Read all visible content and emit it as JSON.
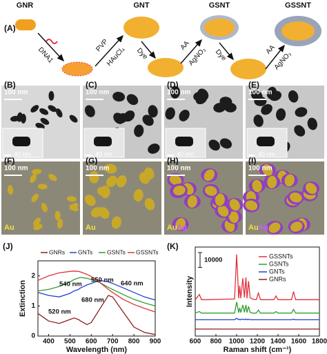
{
  "schematic": {
    "label": "(A)",
    "stages": [
      "GNR",
      "GNT",
      "GSNT",
      "GSSNT"
    ],
    "steps": [
      [
        "DNA1"
      ],
      [
        "PVP",
        "HAuCl₄"
      ],
      [
        "Dye"
      ],
      [
        "AA",
        "AgNO₃"
      ],
      [
        "Dye"
      ],
      [
        "AA",
        "AgNO₃"
      ]
    ]
  },
  "panels": [
    {
      "label": "(B)",
      "scale": "100 nm",
      "inset_scale": "40 nm"
    },
    {
      "label": "(C)",
      "scale": "100 nm",
      "inset_scale": "40 nm"
    },
    {
      "label": "(D)",
      "scale": "100 nm",
      "inset_scale": "40 nm"
    },
    {
      "label": "(E)",
      "scale": "100 nm",
      "inset_scale": "40 nm"
    },
    {
      "label": "(F)",
      "scale": "100 nm",
      "elements": [
        "Au"
      ]
    },
    {
      "label": "(G)",
      "scale": "100 nm",
      "elements": [
        "Au"
      ]
    },
    {
      "label": "(H)",
      "scale": "100 nm",
      "elements": [
        "Au",
        "Ag"
      ]
    },
    {
      "label": "(I)",
      "scale": "100 nm",
      "elements": [
        "Au",
        "Ag"
      ]
    }
  ],
  "chart_data": [
    {
      "type": "line",
      "label": "(J)",
      "xlabel": "Wavelength (nm)",
      "ylabel": "Extinction",
      "x": [
        350,
        400,
        450,
        500,
        520,
        540,
        550,
        580,
        600,
        640,
        680,
        700,
        750,
        800,
        850,
        900
      ],
      "series": [
        {
          "name": "GNRs",
          "color": "#8b1a1a",
          "values": [
            0.75,
            0.5,
            0.42,
            0.55,
            0.6,
            0.55,
            0.5,
            0.38,
            0.45,
            0.9,
            1.35,
            1.3,
            0.8,
            0.3,
            0.12,
            0.05
          ]
        },
        {
          "name": "GNTs",
          "color": "#1f3fd1",
          "values": [
            1.45,
            1.35,
            1.3,
            1.42,
            1.5,
            1.55,
            1.6,
            1.7,
            1.75,
            1.85,
            1.8,
            1.75,
            1.6,
            1.45,
            1.3,
            1.2
          ]
        },
        {
          "name": "GSNTs",
          "color": "#2e9e2e",
          "values": [
            1.5,
            1.55,
            1.65,
            1.8,
            1.88,
            1.93,
            1.95,
            1.92,
            1.88,
            1.78,
            1.62,
            1.55,
            1.38,
            1.22,
            1.1,
            1.0
          ]
        },
        {
          "name": "GSSNTs",
          "color": "#e0303a",
          "values": [
            1.85,
            2.0,
            2.1,
            2.15,
            2.16,
            2.15,
            2.13,
            2.05,
            1.98,
            1.78,
            1.55,
            1.45,
            1.22,
            1.05,
            0.92,
            0.8
          ]
        }
      ],
      "xlim": [
        350,
        900
      ],
      "ylim": [
        0,
        2.5
      ],
      "xticks": [
        400,
        500,
        600,
        700,
        800,
        900
      ],
      "yticks": [
        0,
        1,
        2
      ],
      "annotations": [
        "540 nm",
        "550 nm",
        "640 nm",
        "680 nm",
        "520 nm"
      ]
    },
    {
      "type": "line",
      "label": "(K)",
      "xlabel": "Raman shift (cm⁻¹)",
      "ylabel": "Intensity",
      "scale_bar": 10000,
      "x": [
        600,
        640,
        660,
        700,
        980,
        1000,
        1020,
        1030,
        1040,
        1060,
        1075,
        1090,
        1100,
        1115,
        1130,
        1150,
        1190,
        1210,
        1230,
        1360,
        1380,
        1400,
        1530,
        1550,
        1570,
        1800
      ],
      "series": [
        {
          "name": "GSSNTs",
          "color": "#e0303a",
          "values": [
            24500,
            28000,
            24500,
            24500,
            25000,
            55000,
            25500,
            34000,
            25500,
            39000,
            26000,
            39500,
            25500,
            37000,
            26000,
            25000,
            24500,
            29000,
            24500,
            24500,
            27000,
            24500,
            24500,
            30000,
            24500,
            24500
          ]
        },
        {
          "name": "GSNTs",
          "color": "#2e9e2e",
          "values": [
            15500,
            16500,
            15500,
            15500,
            15500,
            23000,
            15800,
            19000,
            15800,
            21000,
            16000,
            21000,
            15800,
            20000,
            16000,
            15500,
            15500,
            17500,
            15500,
            15500,
            16500,
            15500,
            15500,
            18000,
            15500,
            15500
          ]
        },
        {
          "name": "GNTs",
          "color": "#1f3fd1",
          "values": [
            11000,
            11000,
            11000,
            11000,
            11000,
            12000,
            11000,
            11300,
            11000,
            11500,
            11000,
            11500,
            11000,
            11300,
            11000,
            11000,
            11000,
            11000,
            11000,
            11000,
            11000,
            11000,
            11000,
            11300,
            11000,
            11000
          ]
        },
        {
          "name": "GNRs",
          "color": "#8b1a1a",
          "values": [
            4700,
            4700,
            4700,
            4700,
            4700,
            4700,
            4700,
            4700,
            4700,
            4700,
            4700,
            4700,
            4700,
            4700,
            4700,
            4700,
            4700,
            4700,
            4700,
            4700,
            4700,
            4700,
            4700,
            4700,
            4700,
            4700
          ]
        }
      ],
      "xlim": [
        600,
        1800
      ],
      "ylim": [
        0,
        60000
      ],
      "xticks": [
        600,
        800,
        1000,
        1200,
        1400,
        1600,
        1800
      ]
    }
  ]
}
